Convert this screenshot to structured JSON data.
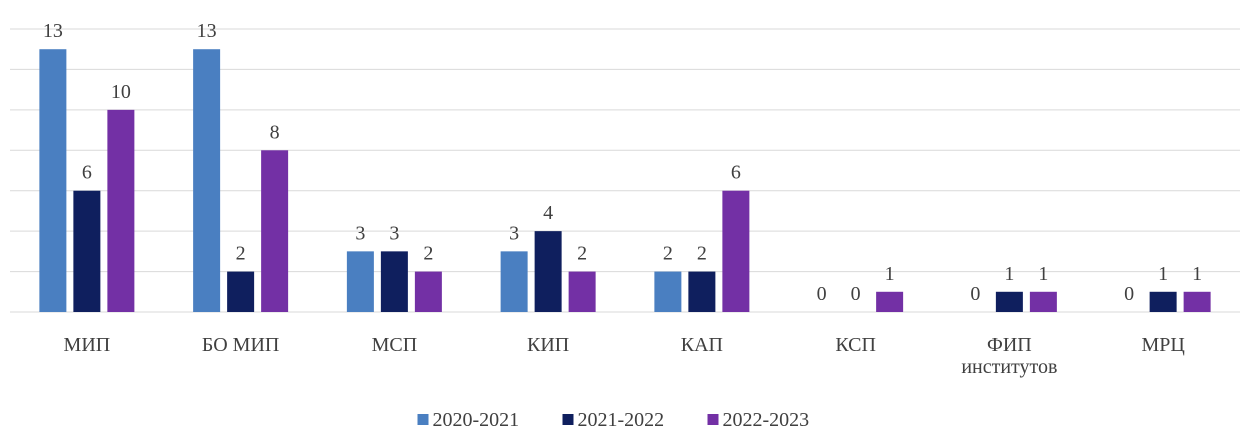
{
  "chart_data": {
    "type": "bar",
    "categories": [
      "МИП",
      "БО МИП",
      "МСП",
      "КИП",
      "КАП",
      "КСП",
      "ФИП институтов",
      "МРЦ"
    ],
    "series": [
      {
        "name": "2020-2021",
        "color": "#4a7fc1",
        "values": [
          13,
          13,
          3,
          3,
          2,
          0,
          0,
          0
        ]
      },
      {
        "name": "2021-2022",
        "color": "#0f1f5e",
        "values": [
          6,
          2,
          3,
          4,
          2,
          0,
          1,
          1
        ]
      },
      {
        "name": "2022-2023",
        "color": "#7330a5",
        "values": [
          10,
          8,
          2,
          2,
          6,
          1,
          1,
          1
        ]
      }
    ],
    "ylim": [
      0,
      14
    ],
    "yticks": [
      0,
      2,
      4,
      6,
      8,
      10,
      12,
      14
    ],
    "grid": true,
    "legend": "bottom"
  }
}
